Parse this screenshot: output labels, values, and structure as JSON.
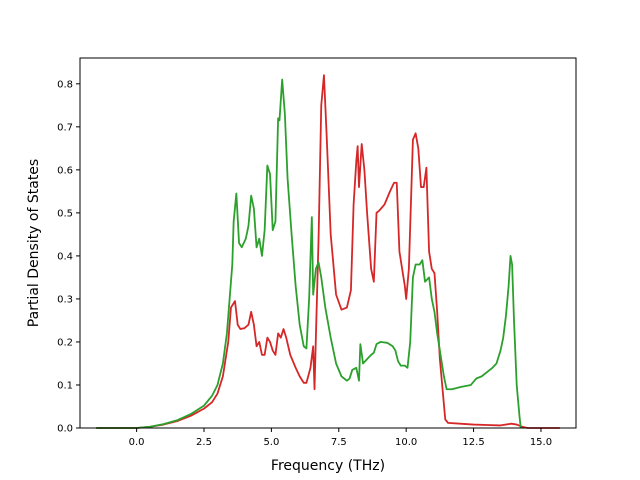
{
  "chart_data": {
    "type": "line",
    "title": "",
    "xlabel": "Frequency (THz)",
    "ylabel": "Partial Density of States",
    "xlim": [
      -2.1,
      16.3
    ],
    "ylim": [
      0,
      0.86
    ],
    "xticks": [
      0,
      2.5,
      5,
      7.5,
      10,
      12.5,
      15
    ],
    "xtick_labels": [
      "0.0",
      "2.5",
      "5.0",
      "7.5",
      "10.0",
      "12.5",
      "15.0"
    ],
    "yticks": [
      0,
      0.1,
      0.2,
      0.3,
      0.4,
      0.5,
      0.6,
      0.7,
      0.8
    ],
    "ytick_labels": [
      "0.0",
      "0.1",
      "0.2",
      "0.3",
      "0.4",
      "0.5",
      "0.6",
      "0.7",
      "0.8"
    ],
    "grid": false,
    "legend": "none",
    "series": [
      {
        "color": "#d62728",
        "points": [
          [
            -1.5,
            0
          ],
          [
            0,
            0
          ],
          [
            0.5,
            0.003
          ],
          [
            1.0,
            0.008
          ],
          [
            1.5,
            0.016
          ],
          [
            2.0,
            0.028
          ],
          [
            2.5,
            0.045
          ],
          [
            2.8,
            0.06
          ],
          [
            3.0,
            0.08
          ],
          [
            3.2,
            0.12
          ],
          [
            3.4,
            0.2
          ],
          [
            3.5,
            0.28
          ],
          [
            3.6,
            0.29
          ],
          [
            3.65,
            0.295
          ],
          [
            3.75,
            0.24
          ],
          [
            3.85,
            0.23
          ],
          [
            4.0,
            0.232
          ],
          [
            4.15,
            0.24
          ],
          [
            4.25,
            0.27
          ],
          [
            4.35,
            0.24
          ],
          [
            4.45,
            0.19
          ],
          [
            4.55,
            0.2
          ],
          [
            4.65,
            0.17
          ],
          [
            4.75,
            0.17
          ],
          [
            4.85,
            0.21
          ],
          [
            4.95,
            0.2
          ],
          [
            5.05,
            0.18
          ],
          [
            5.15,
            0.17
          ],
          [
            5.25,
            0.22
          ],
          [
            5.35,
            0.21
          ],
          [
            5.45,
            0.23
          ],
          [
            5.55,
            0.21
          ],
          [
            5.7,
            0.17
          ],
          [
            5.9,
            0.14
          ],
          [
            6.05,
            0.12
          ],
          [
            6.2,
            0.105
          ],
          [
            6.3,
            0.105
          ],
          [
            6.45,
            0.14
          ],
          [
            6.55,
            0.19
          ],
          [
            6.6,
            0.09
          ],
          [
            6.65,
            0.21
          ],
          [
            6.75,
            0.44
          ],
          [
            6.85,
            0.75
          ],
          [
            6.95,
            0.82
          ],
          [
            7.05,
            0.68
          ],
          [
            7.2,
            0.45
          ],
          [
            7.4,
            0.31
          ],
          [
            7.6,
            0.275
          ],
          [
            7.8,
            0.28
          ],
          [
            7.95,
            0.32
          ],
          [
            8.05,
            0.52
          ],
          [
            8.15,
            0.62
          ],
          [
            8.2,
            0.655
          ],
          [
            8.25,
            0.56
          ],
          [
            8.35,
            0.66
          ],
          [
            8.45,
            0.6
          ],
          [
            8.55,
            0.5
          ],
          [
            8.7,
            0.37
          ],
          [
            8.8,
            0.34
          ],
          [
            8.9,
            0.5
          ],
          [
            9.0,
            0.505
          ],
          [
            9.2,
            0.52
          ],
          [
            9.4,
            0.55
          ],
          [
            9.55,
            0.57
          ],
          [
            9.65,
            0.57
          ],
          [
            9.75,
            0.41
          ],
          [
            9.85,
            0.37
          ],
          [
            9.95,
            0.33
          ],
          [
            10.0,
            0.3
          ],
          [
            10.1,
            0.37
          ],
          [
            10.25,
            0.67
          ],
          [
            10.35,
            0.685
          ],
          [
            10.45,
            0.65
          ],
          [
            10.55,
            0.56
          ],
          [
            10.65,
            0.56
          ],
          [
            10.75,
            0.605
          ],
          [
            10.85,
            0.41
          ],
          [
            10.95,
            0.37
          ],
          [
            11.05,
            0.36
          ],
          [
            11.15,
            0.27
          ],
          [
            11.25,
            0.16
          ],
          [
            11.35,
            0.09
          ],
          [
            11.45,
            0.02
          ],
          [
            11.55,
            0.012
          ],
          [
            12.0,
            0.01
          ],
          [
            12.5,
            0.008
          ],
          [
            13.0,
            0.007
          ],
          [
            13.5,
            0.006
          ],
          [
            13.9,
            0.01
          ],
          [
            14.1,
            0.008
          ],
          [
            14.3,
            0.003
          ],
          [
            14.5,
            0.0
          ],
          [
            15.0,
            0.0
          ],
          [
            15.7,
            0.0
          ]
        ]
      },
      {
        "color": "#2ca02c",
        "points": [
          [
            -1.5,
            0
          ],
          [
            0,
            0
          ],
          [
            0.5,
            0.003
          ],
          [
            1.0,
            0.009
          ],
          [
            1.5,
            0.018
          ],
          [
            2.0,
            0.032
          ],
          [
            2.5,
            0.052
          ],
          [
            2.8,
            0.075
          ],
          [
            3.0,
            0.1
          ],
          [
            3.2,
            0.15
          ],
          [
            3.35,
            0.22
          ],
          [
            3.45,
            0.3
          ],
          [
            3.55,
            0.38
          ],
          [
            3.6,
            0.48
          ],
          [
            3.7,
            0.545
          ],
          [
            3.8,
            0.43
          ],
          [
            3.9,
            0.42
          ],
          [
            4.05,
            0.44
          ],
          [
            4.15,
            0.47
          ],
          [
            4.25,
            0.54
          ],
          [
            4.35,
            0.51
          ],
          [
            4.45,
            0.42
          ],
          [
            4.55,
            0.44
          ],
          [
            4.65,
            0.4
          ],
          [
            4.75,
            0.46
          ],
          [
            4.85,
            0.61
          ],
          [
            4.95,
            0.59
          ],
          [
            5.05,
            0.46
          ],
          [
            5.15,
            0.48
          ],
          [
            5.25,
            0.72
          ],
          [
            5.3,
            0.715
          ],
          [
            5.4,
            0.81
          ],
          [
            5.5,
            0.73
          ],
          [
            5.6,
            0.58
          ],
          [
            5.75,
            0.45
          ],
          [
            5.9,
            0.33
          ],
          [
            6.05,
            0.24
          ],
          [
            6.2,
            0.19
          ],
          [
            6.3,
            0.185
          ],
          [
            6.4,
            0.3
          ],
          [
            6.5,
            0.49
          ],
          [
            6.55,
            0.31
          ],
          [
            6.65,
            0.37
          ],
          [
            6.75,
            0.385
          ],
          [
            6.85,
            0.35
          ],
          [
            7.0,
            0.28
          ],
          [
            7.2,
            0.21
          ],
          [
            7.4,
            0.15
          ],
          [
            7.6,
            0.12
          ],
          [
            7.8,
            0.11
          ],
          [
            7.9,
            0.115
          ],
          [
            8.0,
            0.135
          ],
          [
            8.15,
            0.14
          ],
          [
            8.25,
            0.11
          ],
          [
            8.3,
            0.195
          ],
          [
            8.4,
            0.15
          ],
          [
            8.55,
            0.16
          ],
          [
            8.7,
            0.17
          ],
          [
            8.8,
            0.175
          ],
          [
            8.9,
            0.195
          ],
          [
            9.05,
            0.2
          ],
          [
            9.3,
            0.198
          ],
          [
            9.5,
            0.19
          ],
          [
            9.6,
            0.18
          ],
          [
            9.7,
            0.155
          ],
          [
            9.8,
            0.145
          ],
          [
            9.95,
            0.145
          ],
          [
            10.05,
            0.14
          ],
          [
            10.15,
            0.2
          ],
          [
            10.25,
            0.35
          ],
          [
            10.35,
            0.38
          ],
          [
            10.5,
            0.38
          ],
          [
            10.6,
            0.39
          ],
          [
            10.7,
            0.34
          ],
          [
            10.85,
            0.35
          ],
          [
            10.95,
            0.3
          ],
          [
            11.05,
            0.27
          ],
          [
            11.15,
            0.22
          ],
          [
            11.3,
            0.16
          ],
          [
            11.4,
            0.12
          ],
          [
            11.5,
            0.09
          ],
          [
            11.7,
            0.09
          ],
          [
            12.0,
            0.095
          ],
          [
            12.4,
            0.1
          ],
          [
            12.6,
            0.115
          ],
          [
            12.8,
            0.12
          ],
          [
            13.0,
            0.13
          ],
          [
            13.2,
            0.14
          ],
          [
            13.35,
            0.15
          ],
          [
            13.5,
            0.18
          ],
          [
            13.6,
            0.21
          ],
          [
            13.7,
            0.26
          ],
          [
            13.8,
            0.33
          ],
          [
            13.87,
            0.4
          ],
          [
            13.93,
            0.38
          ],
          [
            14.0,
            0.25
          ],
          [
            14.1,
            0.1
          ],
          [
            14.2,
            0.03
          ],
          [
            14.25,
            0.0
          ]
        ]
      }
    ]
  }
}
